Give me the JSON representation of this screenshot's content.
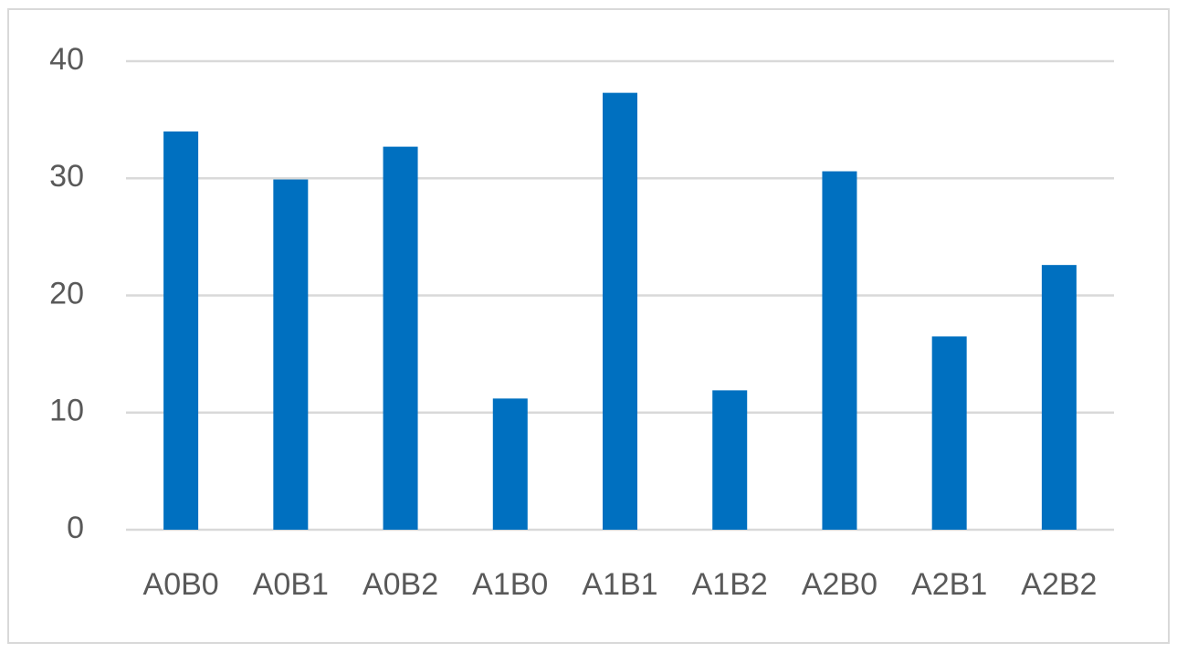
{
  "chart_data": {
    "type": "bar",
    "categories": [
      "A0B0",
      "A0B1",
      "A0B2",
      "A1B0",
      "A1B1",
      "A1B2",
      "A2B0",
      "A2B1",
      "A2B2"
    ],
    "values": [
      34.0,
      29.9,
      32.7,
      11.2,
      37.3,
      11.9,
      30.6,
      16.5,
      22.6
    ],
    "color": "#0070c0",
    "ylim": [
      0,
      40
    ],
    "yticks": [
      0,
      10,
      20,
      30,
      40
    ],
    "grid": true
  }
}
